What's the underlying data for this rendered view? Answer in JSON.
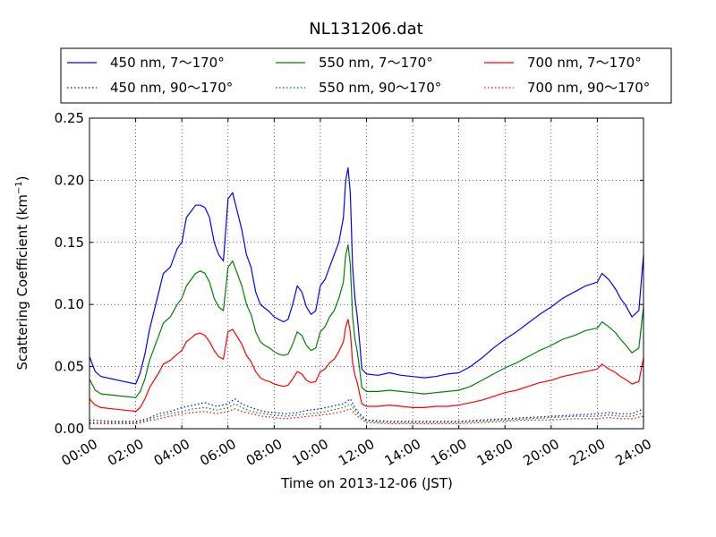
{
  "chart_data": {
    "type": "line",
    "title": "NL131206.dat",
    "xlabel": "Time on 2013-12-06 (JST)",
    "ylabel_main": "Scattering Coefficient (km",
    "ylabel_sup": "−1",
    "ylabel_end": ")",
    "xlim": [
      0,
      24
    ],
    "ylim": [
      0,
      0.25
    ],
    "x_tick_values": [
      0,
      2,
      4,
      6,
      8,
      10,
      12,
      14,
      16,
      18,
      20,
      22,
      24
    ],
    "x_tick_labels": [
      "00:00",
      "02:00",
      "04:00",
      "06:00",
      "08:00",
      "10:00",
      "12:00",
      "14:00",
      "16:00",
      "18:00",
      "20:00",
      "22:00",
      "24:00"
    ],
    "y_tick_values": [
      0,
      0.05,
      0.1,
      0.15,
      0.2,
      0.25
    ],
    "y_tick_labels": [
      "0.00",
      "0.05",
      "0.10",
      "0.15",
      "0.20",
      "0.25"
    ],
    "grid": true,
    "legend_position": "top",
    "legend_labels": [
      "450 nm, 7～170°",
      "550 nm, 7～170°",
      "700 nm, 7～170°",
      "450 nm, 90～170°",
      "550 nm, 90～170°",
      "700 nm, 90～170°"
    ],
    "series": [
      {
        "name": "450 nm, 7～170°",
        "color": "#0000ff",
        "style": "solid",
        "x": [
          0,
          0.25,
          0.5,
          1,
          1.5,
          2,
          2.2,
          2.4,
          2.6,
          3,
          3.2,
          3.5,
          3.8,
          4,
          4.2,
          4.4,
          4.6,
          4.8,
          5,
          5.2,
          5.4,
          5.6,
          5.8,
          6,
          6.2,
          6.4,
          6.6,
          6.8,
          7,
          7.2,
          7.4,
          7.6,
          7.8,
          8,
          8.2,
          8.4,
          8.6,
          8.8,
          9,
          9.2,
          9.4,
          9.6,
          9.8,
          10,
          10.2,
          10.4,
          10.6,
          10.8,
          11,
          11.1,
          11.2,
          11.3,
          11.4,
          11.5,
          11.6,
          11.7,
          11.8,
          12,
          12.5,
          13,
          13.5,
          14,
          14.5,
          15,
          15.5,
          16,
          16.5,
          17,
          17.5,
          18,
          18.5,
          19,
          19.5,
          20,
          20.5,
          21,
          21.5,
          22,
          22.2,
          22.5,
          22.8,
          23,
          23.2,
          23.5,
          23.8,
          24
        ],
        "y": [
          0.058,
          0.046,
          0.042,
          0.04,
          0.038,
          0.036,
          0.045,
          0.06,
          0.08,
          0.11,
          0.125,
          0.13,
          0.145,
          0.15,
          0.17,
          0.175,
          0.18,
          0.18,
          0.178,
          0.17,
          0.15,
          0.14,
          0.135,
          0.185,
          0.19,
          0.175,
          0.16,
          0.14,
          0.13,
          0.11,
          0.1,
          0.097,
          0.094,
          0.09,
          0.088,
          0.086,
          0.088,
          0.1,
          0.115,
          0.11,
          0.098,
          0.092,
          0.095,
          0.115,
          0.12,
          0.13,
          0.14,
          0.15,
          0.17,
          0.2,
          0.21,
          0.19,
          0.13,
          0.105,
          0.09,
          0.07,
          0.048,
          0.044,
          0.043,
          0.045,
          0.043,
          0.042,
          0.041,
          0.042,
          0.044,
          0.045,
          0.05,
          0.057,
          0.065,
          0.072,
          0.078,
          0.085,
          0.092,
          0.098,
          0.105,
          0.11,
          0.115,
          0.118,
          0.125,
          0.12,
          0.112,
          0.105,
          0.1,
          0.09,
          0.095,
          0.14
        ]
      },
      {
        "name": "550 nm, 7～170°",
        "color": "#008000",
        "style": "solid",
        "x": [
          0,
          0.25,
          0.5,
          1,
          1.5,
          2,
          2.2,
          2.4,
          2.6,
          3,
          3.2,
          3.5,
          3.8,
          4,
          4.2,
          4.4,
          4.6,
          4.8,
          5,
          5.2,
          5.4,
          5.6,
          5.8,
          6,
          6.2,
          6.4,
          6.6,
          6.8,
          7,
          7.2,
          7.4,
          7.6,
          7.8,
          8,
          8.2,
          8.4,
          8.6,
          8.8,
          9,
          9.2,
          9.4,
          9.6,
          9.8,
          10,
          10.2,
          10.4,
          10.6,
          10.8,
          11,
          11.1,
          11.2,
          11.3,
          11.4,
          11.5,
          11.6,
          11.7,
          11.8,
          12,
          12.5,
          13,
          13.5,
          14,
          14.5,
          15,
          15.5,
          16,
          16.5,
          17,
          17.5,
          18,
          18.5,
          19,
          19.5,
          20,
          20.5,
          21,
          21.5,
          22,
          22.2,
          22.5,
          22.8,
          23,
          23.2,
          23.5,
          23.8,
          24
        ],
        "y": [
          0.04,
          0.031,
          0.028,
          0.027,
          0.026,
          0.025,
          0.03,
          0.04,
          0.055,
          0.075,
          0.085,
          0.09,
          0.1,
          0.105,
          0.115,
          0.12,
          0.125,
          0.127,
          0.125,
          0.118,
          0.105,
          0.098,
          0.095,
          0.13,
          0.135,
          0.125,
          0.115,
          0.1,
          0.092,
          0.078,
          0.07,
          0.067,
          0.065,
          0.062,
          0.06,
          0.059,
          0.06,
          0.068,
          0.078,
          0.075,
          0.067,
          0.063,
          0.065,
          0.078,
          0.082,
          0.09,
          0.095,
          0.105,
          0.118,
          0.14,
          0.148,
          0.132,
          0.09,
          0.072,
          0.062,
          0.048,
          0.033,
          0.03,
          0.03,
          0.031,
          0.03,
          0.029,
          0.028,
          0.029,
          0.03,
          0.031,
          0.034,
          0.039,
          0.044,
          0.049,
          0.053,
          0.058,
          0.063,
          0.067,
          0.072,
          0.075,
          0.079,
          0.081,
          0.086,
          0.082,
          0.077,
          0.072,
          0.068,
          0.061,
          0.065,
          0.098
        ]
      },
      {
        "name": "700 nm, 7～170°",
        "color": "#ff0000",
        "style": "solid",
        "x": [
          0,
          0.25,
          0.5,
          1,
          1.5,
          2,
          2.2,
          2.4,
          2.6,
          3,
          3.2,
          3.5,
          3.8,
          4,
          4.2,
          4.4,
          4.6,
          4.8,
          5,
          5.2,
          5.4,
          5.6,
          5.8,
          6,
          6.2,
          6.4,
          6.6,
          6.8,
          7,
          7.2,
          7.4,
          7.6,
          7.8,
          8,
          8.2,
          8.4,
          8.6,
          8.8,
          9,
          9.2,
          9.4,
          9.6,
          9.8,
          10,
          10.2,
          10.4,
          10.6,
          10.8,
          11,
          11.1,
          11.2,
          11.3,
          11.4,
          11.5,
          11.6,
          11.7,
          11.8,
          12,
          12.5,
          13,
          13.5,
          14,
          14.5,
          15,
          15.5,
          16,
          16.5,
          17,
          17.5,
          18,
          18.5,
          19,
          19.5,
          20,
          20.5,
          21,
          21.5,
          22,
          22.2,
          22.5,
          22.8,
          23,
          23.2,
          23.5,
          23.8,
          24
        ],
        "y": [
          0.024,
          0.019,
          0.017,
          0.016,
          0.015,
          0.014,
          0.017,
          0.024,
          0.033,
          0.045,
          0.052,
          0.055,
          0.06,
          0.063,
          0.07,
          0.073,
          0.076,
          0.077,
          0.075,
          0.07,
          0.063,
          0.058,
          0.056,
          0.078,
          0.08,
          0.074,
          0.068,
          0.059,
          0.054,
          0.046,
          0.041,
          0.039,
          0.038,
          0.036,
          0.035,
          0.034,
          0.035,
          0.04,
          0.046,
          0.044,
          0.039,
          0.037,
          0.038,
          0.046,
          0.048,
          0.053,
          0.056,
          0.062,
          0.07,
          0.082,
          0.088,
          0.078,
          0.053,
          0.043,
          0.037,
          0.028,
          0.02,
          0.018,
          0.018,
          0.019,
          0.018,
          0.017,
          0.017,
          0.018,
          0.018,
          0.019,
          0.021,
          0.023,
          0.026,
          0.029,
          0.031,
          0.034,
          0.037,
          0.039,
          0.042,
          0.044,
          0.046,
          0.048,
          0.052,
          0.048,
          0.045,
          0.042,
          0.04,
          0.036,
          0.038,
          0.057
        ]
      },
      {
        "name": "450 nm, 90～170°",
        "color": "#0000ff",
        "style": "dotted",
        "x": [
          0,
          1,
          2,
          2.5,
          3,
          3.5,
          4,
          4.5,
          5,
          5.5,
          6,
          6.3,
          6.6,
          7,
          7.5,
          8,
          8.5,
          9,
          9.5,
          10,
          10.5,
          11,
          11.3,
          11.6,
          12,
          13,
          14,
          15,
          16,
          17,
          18,
          19,
          20,
          21,
          22,
          22.5,
          23,
          23.5,
          24
        ],
        "y": [
          0.007,
          0.006,
          0.006,
          0.008,
          0.012,
          0.014,
          0.017,
          0.019,
          0.021,
          0.018,
          0.02,
          0.024,
          0.02,
          0.017,
          0.014,
          0.013,
          0.012,
          0.013,
          0.015,
          0.016,
          0.018,
          0.02,
          0.024,
          0.014,
          0.007,
          0.006,
          0.006,
          0.006,
          0.006,
          0.007,
          0.008,
          0.009,
          0.01,
          0.011,
          0.012,
          0.013,
          0.012,
          0.012,
          0.016
        ]
      },
      {
        "name": "550 nm, 90～170°",
        "color": "#008000",
        "style": "dotted",
        "x": [
          0,
          1,
          2,
          2.5,
          3,
          3.5,
          4,
          4.5,
          5,
          5.5,
          6,
          6.3,
          6.6,
          7,
          7.5,
          8,
          8.5,
          9,
          9.5,
          10,
          10.5,
          11,
          11.3,
          11.6,
          12,
          13,
          14,
          15,
          16,
          17,
          18,
          19,
          20,
          21,
          22,
          22.5,
          23,
          23.5,
          24
        ],
        "y": [
          0.005,
          0.005,
          0.005,
          0.007,
          0.01,
          0.012,
          0.014,
          0.016,
          0.017,
          0.015,
          0.017,
          0.02,
          0.017,
          0.014,
          0.012,
          0.011,
          0.01,
          0.011,
          0.012,
          0.013,
          0.015,
          0.017,
          0.02,
          0.012,
          0.006,
          0.005,
          0.005,
          0.005,
          0.005,
          0.006,
          0.007,
          0.008,
          0.009,
          0.01,
          0.01,
          0.011,
          0.01,
          0.01,
          0.013
        ]
      },
      {
        "name": "700 nm, 90～170°",
        "color": "#ff0000",
        "style": "dotted",
        "x": [
          0,
          1,
          2,
          2.5,
          3,
          3.5,
          4,
          4.5,
          5,
          5.5,
          6,
          6.3,
          6.6,
          7,
          7.5,
          8,
          8.5,
          9,
          9.5,
          10,
          10.5,
          11,
          11.3,
          11.6,
          12,
          13,
          14,
          15,
          16,
          17,
          18,
          19,
          20,
          21,
          22,
          22.5,
          23,
          23.5,
          24
        ],
        "y": [
          0.004,
          0.004,
          0.004,
          0.006,
          0.008,
          0.01,
          0.012,
          0.013,
          0.014,
          0.012,
          0.014,
          0.016,
          0.014,
          0.012,
          0.01,
          0.009,
          0.008,
          0.009,
          0.01,
          0.011,
          0.012,
          0.014,
          0.016,
          0.01,
          0.005,
          0.004,
          0.004,
          0.004,
          0.004,
          0.005,
          0.006,
          0.007,
          0.007,
          0.008,
          0.008,
          0.009,
          0.008,
          0.008,
          0.01
        ]
      }
    ]
  }
}
